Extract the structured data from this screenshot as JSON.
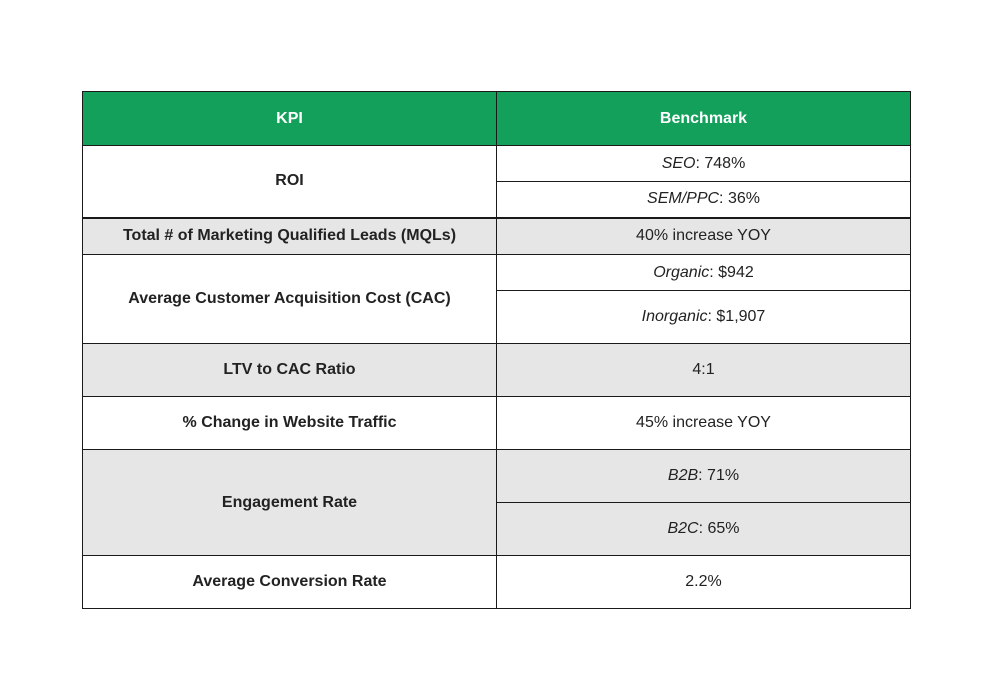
{
  "table": {
    "headers": {
      "kpi": "KPI",
      "benchmark": "Benchmark"
    },
    "rows": [
      {
        "kpi": "ROI",
        "values": [
          {
            "label": "SEO",
            "value": ": 748%"
          },
          {
            "label": "SEM/PPC",
            "value": ": 36%"
          }
        ]
      },
      {
        "kpi": "Total # of Marketing Qualified Leads (MQLs)",
        "values": [
          {
            "label": "",
            "value": "40% increase YOY"
          }
        ]
      },
      {
        "kpi": "Average Customer Acquisition Cost (CAC)",
        "values": [
          {
            "label": "Organic",
            "value": ": $942"
          },
          {
            "label": "Inorganic",
            "value": ": $1,907"
          }
        ]
      },
      {
        "kpi": "LTV to CAC Ratio",
        "values": [
          {
            "label": "",
            "value": "4:1"
          }
        ]
      },
      {
        "kpi": "% Change in Website Traffic",
        "values": [
          {
            "label": "",
            "value": "45% increase YOY"
          }
        ]
      },
      {
        "kpi": "Engagement Rate",
        "values": [
          {
            "label": "B2B",
            "value": ": 71%"
          },
          {
            "label": "B2C",
            "value": ": 65%"
          }
        ]
      },
      {
        "kpi": "Average Conversion Rate",
        "values": [
          {
            "label": "",
            "value": "2.2%"
          }
        ]
      }
    ]
  },
  "colors": {
    "header_bg": "#12a05a",
    "header_text": "#ffffff",
    "shaded_row": "#e6e6e6",
    "border": "#1a1a1a"
  }
}
